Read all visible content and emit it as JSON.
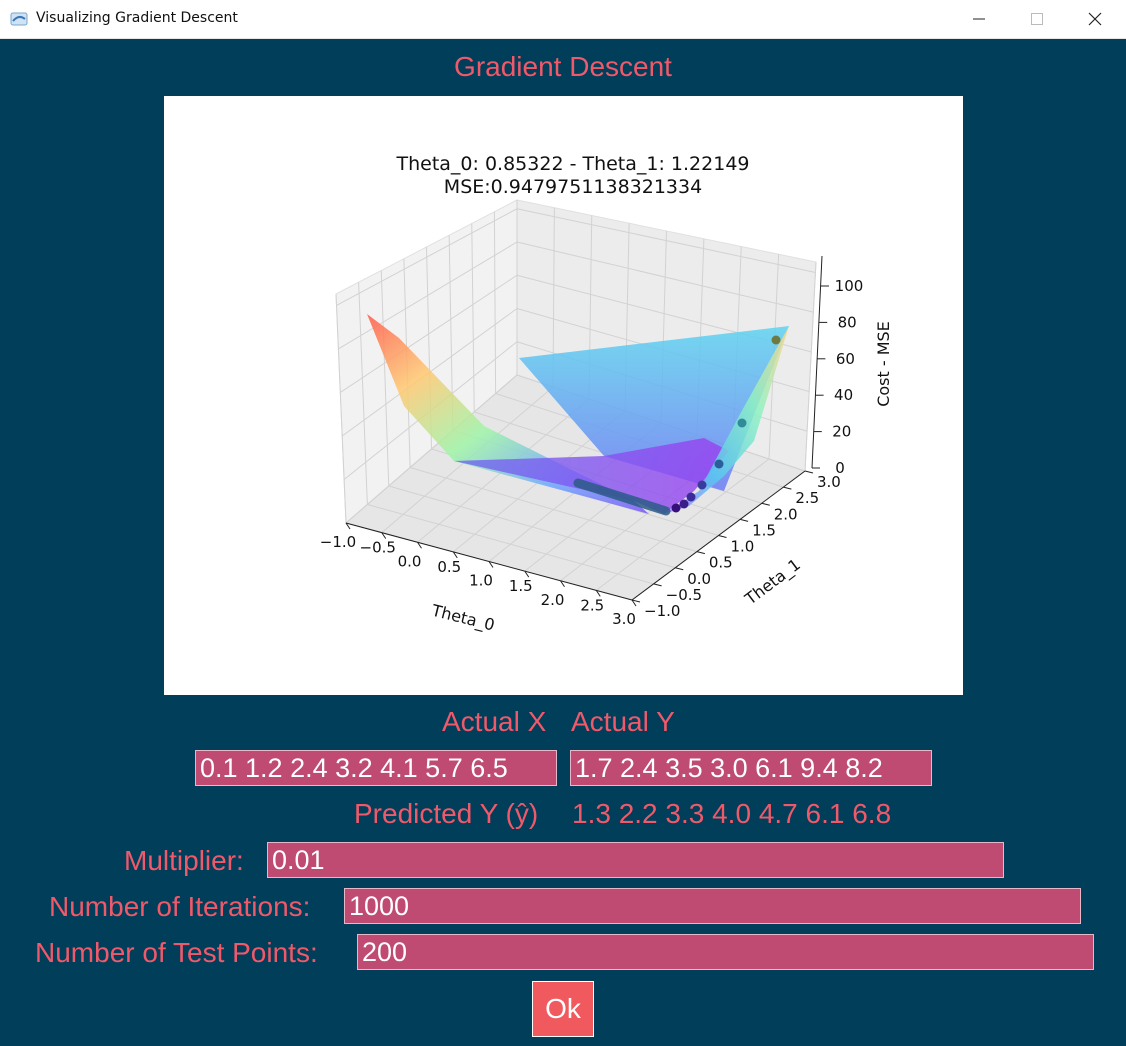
{
  "window": {
    "title": "Visualizing Gradient Descent",
    "minimize_icon": "minimize-icon",
    "maximize_icon": "maximize-icon",
    "close_icon": "close-icon"
  },
  "heading": "Gradient Descent",
  "chart_data": {
    "type": "surface3d",
    "title_line1": "Theta_0: 0.85322 - Theta_1: 1.22149",
    "title_line2": "MSE:0.9479751138321334",
    "xlabel": "Theta_0",
    "ylabel": "Theta_1",
    "zlabel": "Cost - MSE",
    "x_ticks": [
      "−1.0",
      "−0.5",
      "0.0",
      "0.5",
      "1.0",
      "1.5",
      "2.0",
      "2.5",
      "3.0"
    ],
    "y_ticks": [
      "−1.0",
      "−0.5",
      "0.0",
      "0.5",
      "1.0",
      "1.5",
      "2.0",
      "2.5",
      "3.0"
    ],
    "z_ticks": [
      "0",
      "20",
      "40",
      "60",
      "80",
      "100"
    ],
    "xlim": [
      -1.0,
      3.0
    ],
    "ylim": [
      -1.0,
      3.0
    ],
    "zlim": [
      0,
      100
    ],
    "colormap": "rainbow",
    "descent_path_color": "#2b5b86"
  },
  "labels": {
    "actual_x": "Actual X",
    "actual_y": "Actual Y",
    "predicted_y": "Predicted Y (ŷ)",
    "predicted_values": "1.3 2.2 3.3 4.0 4.7 6.1 6.8",
    "multiplier": "Multiplier:",
    "iterations": "Number of Iterations:",
    "test_points": "Number of Test Points:"
  },
  "inputs": {
    "actual_x": "0.1 1.2 2.4 3.2 4.1 5.7 6.5",
    "actual_y": "1.7 2.4 3.5 3.0 6.1 9.4 8.2",
    "multiplier": "0.01",
    "iterations": "1000",
    "test_points": "200"
  },
  "ok_label": "Ok",
  "colors": {
    "background": "#003e59",
    "text": "#f0596a",
    "field": "#bf4a72",
    "button": "#f05a5f"
  }
}
